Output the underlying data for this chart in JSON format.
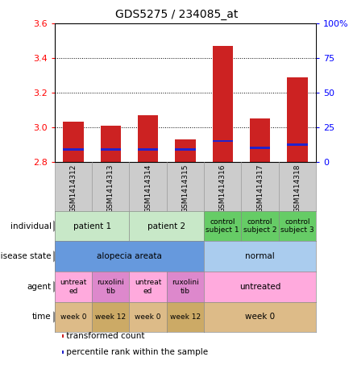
{
  "title": "GDS5275 / 234085_at",
  "samples": [
    "GSM1414312",
    "GSM1414313",
    "GSM1414314",
    "GSM1414315",
    "GSM1414316",
    "GSM1414317",
    "GSM1414318"
  ],
  "red_values": [
    3.03,
    3.01,
    3.07,
    2.93,
    3.47,
    3.05,
    3.29
  ],
  "blue_values": [
    2.87,
    2.87,
    2.87,
    2.87,
    2.92,
    2.88,
    2.9
  ],
  "ymin": 2.8,
  "ymax": 3.6,
  "yticks": [
    2.8,
    3.0,
    3.2,
    3.4,
    3.6
  ],
  "right_yticks": [
    0,
    25,
    50,
    75,
    100
  ],
  "right_yticklabels": [
    "0",
    "25",
    "50",
    "75",
    "100%"
  ],
  "annotation_rows": [
    {
      "label": "individual",
      "cells": [
        {
          "text": "patient 1",
          "span": 2,
          "color": "#c8e8c8"
        },
        {
          "text": "patient 2",
          "span": 2,
          "color": "#c8e8c8"
        },
        {
          "text": "control\nsubject 1",
          "span": 1,
          "color": "#66cc66"
        },
        {
          "text": "control\nsubject 2",
          "span": 1,
          "color": "#66cc66"
        },
        {
          "text": "control\nsubject 3",
          "span": 1,
          "color": "#66cc66"
        }
      ]
    },
    {
      "label": "disease state",
      "cells": [
        {
          "text": "alopecia areata",
          "span": 4,
          "color": "#6699dd"
        },
        {
          "text": "normal",
          "span": 3,
          "color": "#aaccee"
        }
      ]
    },
    {
      "label": "agent",
      "cells": [
        {
          "text": "untreat\ned",
          "span": 1,
          "color": "#ffaadd"
        },
        {
          "text": "ruxolini\ntib",
          "span": 1,
          "color": "#dd88cc"
        },
        {
          "text": "untreat\ned",
          "span": 1,
          "color": "#ffaadd"
        },
        {
          "text": "ruxolini\ntib",
          "span": 1,
          "color": "#dd88cc"
        },
        {
          "text": "untreated",
          "span": 3,
          "color": "#ffaadd"
        }
      ]
    },
    {
      "label": "time",
      "cells": [
        {
          "text": "week 0",
          "span": 1,
          "color": "#ddbb88"
        },
        {
          "text": "week 12",
          "span": 1,
          "color": "#ccaa66"
        },
        {
          "text": "week 0",
          "span": 1,
          "color": "#ddbb88"
        },
        {
          "text": "week 12",
          "span": 1,
          "color": "#ccaa66"
        },
        {
          "text": "week 0",
          "span": 3,
          "color": "#ddbb88"
        }
      ]
    }
  ],
  "legend": [
    {
      "color": "#cc2222",
      "label": "transformed count"
    },
    {
      "color": "#2222cc",
      "label": "percentile rank within the sample"
    }
  ],
  "bar_color": "#cc2222",
  "blue_color": "#2222cc",
  "bar_width": 0.55,
  "xticklabel_bg": "#cccccc",
  "background_color": "#ffffff"
}
